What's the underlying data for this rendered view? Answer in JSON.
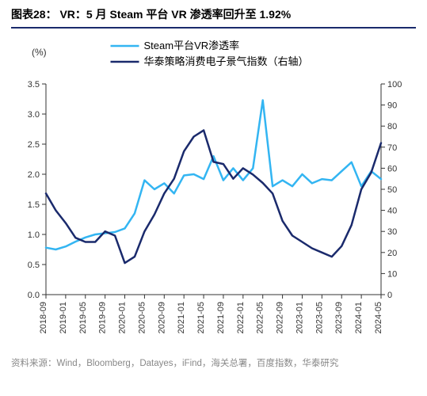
{
  "title": "图表28： VR：5 月 Steam 平台 VR 渗透率回升至 1.92%",
  "source": "资料来源：Wind，Bloomberg，Datayes，iFind，海关总署，百度指数，华泰研究",
  "chart": {
    "type": "line",
    "background_color": "#ffffff",
    "grid_on": false,
    "y_left": {
      "label": "(%)",
      "min": 0.0,
      "max": 3.5,
      "tick_step": 0.5,
      "tick_fontsize": 11
    },
    "y_right": {
      "min": 0,
      "max": 100,
      "tick_step": 10,
      "tick_fontsize": 11
    },
    "x": {
      "label_fontsize": 11,
      "categories": [
        "2018-09",
        "2018-11",
        "2019-01",
        "2019-03",
        "2019-05",
        "2019-07",
        "2019-09",
        "2019-11",
        "2020-01",
        "2020-03",
        "2020-05",
        "2020-07",
        "2020-09",
        "2020-11",
        "2021-01",
        "2021-03",
        "2021-05",
        "2021-07",
        "2021-09",
        "2021-11",
        "2022-01",
        "2022-03",
        "2022-05",
        "2022-07",
        "2022-09",
        "2022-11",
        "2023-01",
        "2023-03",
        "2023-05",
        "2023-07",
        "2023-09",
        "2023-11",
        "2024-01",
        "2024-03",
        "2024-05"
      ],
      "tick_indices": [
        0,
        2,
        4,
        6,
        8,
        10,
        12,
        14,
        16,
        18,
        20,
        22,
        24,
        26,
        28,
        30,
        32,
        34
      ]
    },
    "legend_items": [
      {
        "label": "Steam平台VR渗透率",
        "color": "#33b5f2",
        "width": 2.5
      },
      {
        "label": "华泰策略消费电子景气指数（右轴）",
        "color": "#1a2a6c",
        "width": 2.5
      }
    ],
    "series": [
      {
        "name": "Steam平台VR渗透率",
        "axis": "left",
        "color": "#33b5f2",
        "width": 2.5,
        "values": [
          0.78,
          0.75,
          0.8,
          0.88,
          0.95,
          1.0,
          1.02,
          1.04,
          1.1,
          1.35,
          1.9,
          1.75,
          1.85,
          1.68,
          1.98,
          2.0,
          1.92,
          2.3,
          1.9,
          2.1,
          1.9,
          2.1,
          3.23,
          1.8,
          1.9,
          1.8,
          2.0,
          1.85,
          1.92,
          1.9,
          2.05,
          2.2,
          1.8,
          2.05,
          1.92
        ]
      },
      {
        "name": "华泰策略消费电子景气指数（右轴）",
        "axis": "right",
        "color": "#1a2a6c",
        "width": 2.5,
        "values": [
          48,
          40,
          34,
          27,
          25,
          25,
          30,
          28,
          15,
          18,
          30,
          38,
          48,
          55,
          68,
          75,
          78,
          63,
          62,
          55,
          60,
          57,
          53,
          48,
          35,
          28,
          25,
          22,
          20,
          18,
          23,
          33,
          50,
          58,
          72
        ]
      }
    ]
  }
}
